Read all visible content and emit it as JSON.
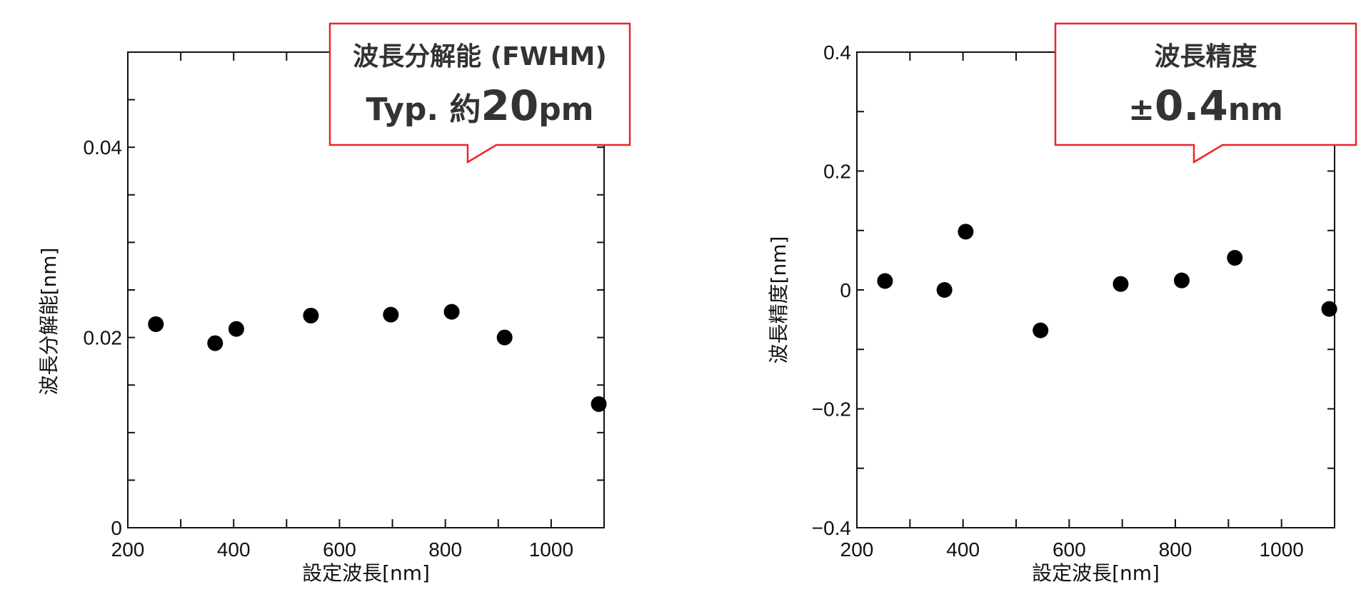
{
  "chart_data": [
    {
      "type": "scatter",
      "xlabel": "設定波長[nm]",
      "ylabel": "波長分解能[nm]",
      "xlim": [
        200,
        1100
      ],
      "ylim": [
        0,
        0.05
      ],
      "xticks": [
        {
          "v": 200,
          "label": "200"
        },
        {
          "v": 400,
          "label": "400"
        },
        {
          "v": 600,
          "label": "600"
        },
        {
          "v": 800,
          "label": "800"
        },
        {
          "v": 1000,
          "label": "1000"
        }
      ],
      "yticks": [
        {
          "v": 0,
          "label": "0"
        },
        {
          "v": 0.02,
          "label": "0.02"
        },
        {
          "v": 0.04,
          "label": "0.04"
        }
      ],
      "x_minor_step": 100,
      "y_minor_step": 0.005,
      "points": [
        {
          "x": 253,
          "y": 0.0214
        },
        {
          "x": 365,
          "y": 0.0194
        },
        {
          "x": 405,
          "y": 0.0209
        },
        {
          "x": 546,
          "y": 0.0223
        },
        {
          "x": 697,
          "y": 0.0224
        },
        {
          "x": 812,
          "y": 0.0227
        },
        {
          "x": 912,
          "y": 0.02
        },
        {
          "x": 1090,
          "y": 0.013
        }
      ],
      "callout": {
        "title": "波長分解能 (FWHM)",
        "prefix": "Typ. 約",
        "value": "20",
        "unit": "pm",
        "border_color": "#e8262a"
      }
    },
    {
      "type": "scatter",
      "xlabel": "設定波長[nm]",
      "ylabel": "波長精度[nm]",
      "xlim": [
        200,
        1100
      ],
      "ylim": [
        -0.4,
        0.4
      ],
      "xticks": [
        {
          "v": 200,
          "label": "200"
        },
        {
          "v": 400,
          "label": "400"
        },
        {
          "v": 600,
          "label": "600"
        },
        {
          "v": 800,
          "label": "800"
        },
        {
          "v": 1000,
          "label": "1000"
        }
      ],
      "yticks": [
        {
          "v": -0.4,
          "label": "−0.4"
        },
        {
          "v": -0.2,
          "label": "−0.2"
        },
        {
          "v": 0,
          "label": "0"
        },
        {
          "v": 0.2,
          "label": "0.2"
        },
        {
          "v": 0.4,
          "label": "0.4"
        }
      ],
      "x_minor_step": 100,
      "y_minor_step": 0.1,
      "points": [
        {
          "x": 253,
          "y": 0.015
        },
        {
          "x": 365,
          "y": 0.0
        },
        {
          "x": 405,
          "y": 0.098
        },
        {
          "x": 546,
          "y": -0.068
        },
        {
          "x": 697,
          "y": 0.01
        },
        {
          "x": 812,
          "y": 0.016
        },
        {
          "x": 912,
          "y": 0.054
        },
        {
          "x": 1090,
          "y": -0.032
        }
      ],
      "callout": {
        "title": "波長精度",
        "prefix": "±",
        "value": "0.4",
        "unit": "nm",
        "border_color": "#e8262a"
      }
    }
  ]
}
